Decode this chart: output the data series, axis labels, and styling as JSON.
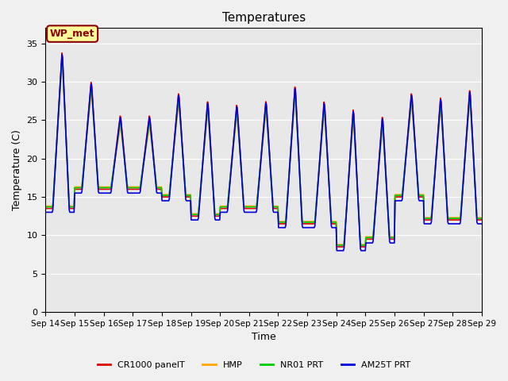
{
  "title": "Temperatures",
  "xlabel": "Time",
  "ylabel": "Temperature (C)",
  "annotation_text": "WP_met",
  "annotation_bg": "#FFFF99",
  "annotation_border": "#8B0000",
  "annotation_text_color": "#8B0000",
  "series_colors": [
    "#DD0000",
    "#FFA500",
    "#00CC00",
    "#0000DD"
  ],
  "series_labels": [
    "CR1000 panelT",
    "HMP",
    "NR01 PRT",
    "AM25T PRT"
  ],
  "ylim": [
    0,
    37
  ],
  "yticks": [
    0,
    5,
    10,
    15,
    20,
    25,
    30,
    35
  ],
  "plot_bg": "#E8E8E8",
  "fig_bg": "#F0F0F0",
  "x_tick_labels": [
    "Sep 14",
    "Sep 15",
    "Sep 16",
    "Sep 17",
    "Sep 18",
    "Sep 19",
    "Sep 20",
    "Sep 21",
    "Sep 22",
    "Sep 23",
    "Sep 24",
    "Sep 25",
    "Sep 26",
    "Sep 27",
    "Sep 28",
    "Sep 29"
  ],
  "peaks": [
    34.0,
    30.0,
    25.5,
    25.5,
    28.5,
    27.5,
    27.0,
    27.5,
    29.5,
    27.5,
    26.5,
    25.5,
    28.5,
    28.0,
    29.0
  ],
  "mins_night": [
    13.5,
    16.0,
    16.0,
    16.0,
    15.0,
    12.5,
    13.5,
    13.5,
    11.5,
    11.5,
    8.5,
    9.5,
    15.0,
    12.0,
    12.0
  ]
}
